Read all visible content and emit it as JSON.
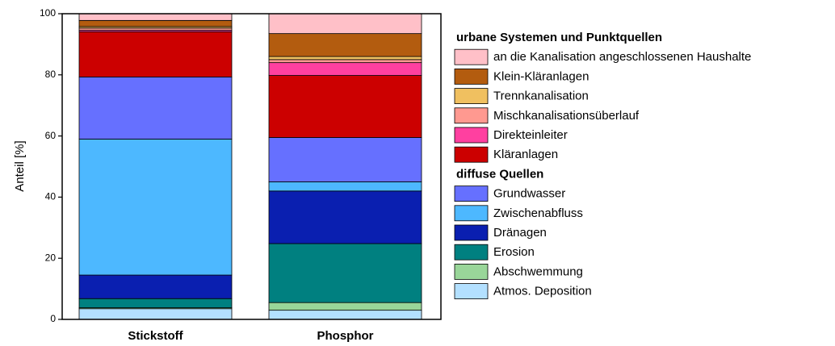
{
  "chart_data": {
    "type": "stacked_bar",
    "ylabel": "Anteil [%]",
    "categories": [
      "Stickstoff",
      "Phosphor"
    ],
    "ylim": [
      0,
      100
    ],
    "yticks": [
      0,
      20,
      40,
      60,
      80,
      100
    ],
    "groups": [
      {
        "name": "diffuse Quellen",
        "series": [
          {
            "name": "Atmos. Deposition",
            "color": "#b3e0ff",
            "values": [
              3.5,
              3
            ]
          },
          {
            "name": "Abschwemmung",
            "color": "#99d699",
            "values": [
              0.3,
              2.5
            ]
          },
          {
            "name": "Erosion",
            "color": "#008080",
            "values": [
              3,
              19.3
            ]
          },
          {
            "name": "Dränagen",
            "color": "#0a1fb0",
            "values": [
              7.7,
              17.2
            ]
          },
          {
            "name": "Zwischenabfluss",
            "color": "#4db8ff",
            "values": [
              44.5,
              3
            ]
          },
          {
            "name": "Grundwasser",
            "color": "#6670ff",
            "values": [
              20.3,
              14.5
            ]
          }
        ]
      },
      {
        "name": "urbane Systemen und Punktquellen",
        "series": [
          {
            "name": "Kläranlagen",
            "color": "#cc0000",
            "values": [
              14.8,
              20.3
            ]
          },
          {
            "name": "Direkteinleiter",
            "color": "#ff40a0",
            "values": [
              0.5,
              4.2
            ]
          },
          {
            "name": "Mischkanalisationsüberlauf",
            "color": "#ff9990",
            "values": [
              0.7,
              1
            ]
          },
          {
            "name": "Trennkanalisation",
            "color": "#f0c060",
            "values": [
              0.5,
              1
            ]
          },
          {
            "name": "Klein-Kläranlagen",
            "color": "#b35c0f",
            "values": [
              2,
              7.5
            ]
          },
          {
            "name": "an die Kanalisation angeschlossenen Haushalte",
            "color": "#ffc0c8",
            "values": [
              2.2,
              6.5
            ]
          }
        ]
      }
    ]
  }
}
